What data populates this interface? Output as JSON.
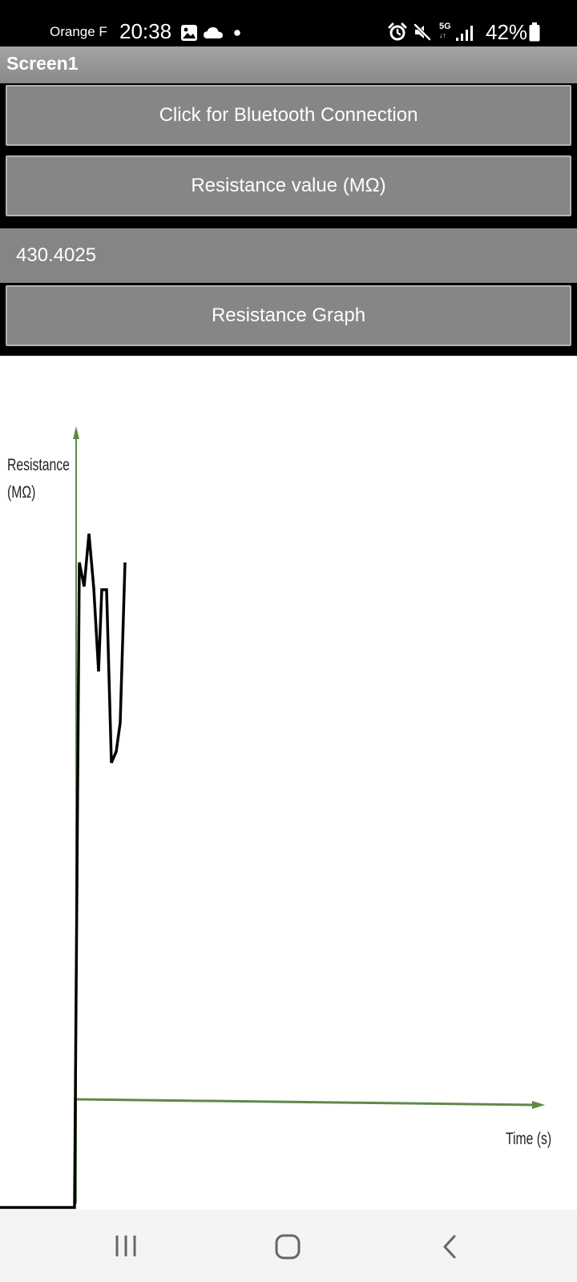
{
  "status_bar": {
    "carrier": "Orange F",
    "time": "20:38",
    "network": "5G",
    "battery": "42%",
    "icons": [
      "gallery-icon",
      "cloud-icon",
      "dot-icon",
      "alarm-icon",
      "mute-icon",
      "signal-icon",
      "battery-icon"
    ]
  },
  "app_bar": {
    "title": "Screen1"
  },
  "controls": {
    "bluetooth_button": "Click for Bluetooth Connection",
    "resistance_label": "Resistance value (MΩ)",
    "resistance_value": "430.4025",
    "graph_button": "Resistance Graph"
  },
  "graph": {
    "ylabel_line1": "Resistance",
    "ylabel_line2": "(MΩ)",
    "xlabel": "Time (s)",
    "axis_color": "#5e8a48",
    "line_color": "#000000"
  },
  "nav_bar": {
    "icons": [
      "recent-apps-icon",
      "home-icon",
      "back-icon"
    ]
  }
}
